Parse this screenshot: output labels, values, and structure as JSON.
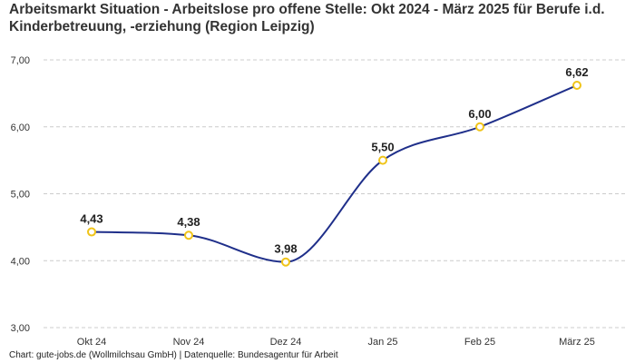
{
  "chart_data": {
    "type": "line",
    "title": "Arbeitsmarkt Situation - Arbeitslose pro offene Stelle: Okt 2024 - März 2025 für Berufe i.d. Kinderbetreuung, -erziehung (Region Leipzig)",
    "categories": [
      "Okt 24",
      "Nov 24",
      "Dez 24",
      "Jan 25",
      "Feb 25",
      "März 25"
    ],
    "series": [
      {
        "name": "Arbeitslose pro offene Stelle",
        "values": [
          4.43,
          4.38,
          3.98,
          5.5,
          6.0,
          6.62
        ],
        "labels": [
          "4,43",
          "4,38",
          "3,98",
          "5,50",
          "6,00",
          "6,62"
        ]
      }
    ],
    "ylim": [
      3,
      7
    ],
    "yticks": [
      3,
      4,
      5,
      6,
      7
    ],
    "ytick_labels": [
      "3,00",
      "4,00",
      "5,00",
      "6,00",
      "7,00"
    ],
    "xlabel": "",
    "ylabel": "",
    "grid": true,
    "colors": {
      "line": "#1f2f8a",
      "marker_edge": "#f0c419",
      "marker_fill": "#ffffff",
      "grid": "#cccccc"
    }
  },
  "source": "Chart: gute-jobs.de (Wollmilchsau GmbH) | Datenquelle: Bundesagentur für Arbeit"
}
